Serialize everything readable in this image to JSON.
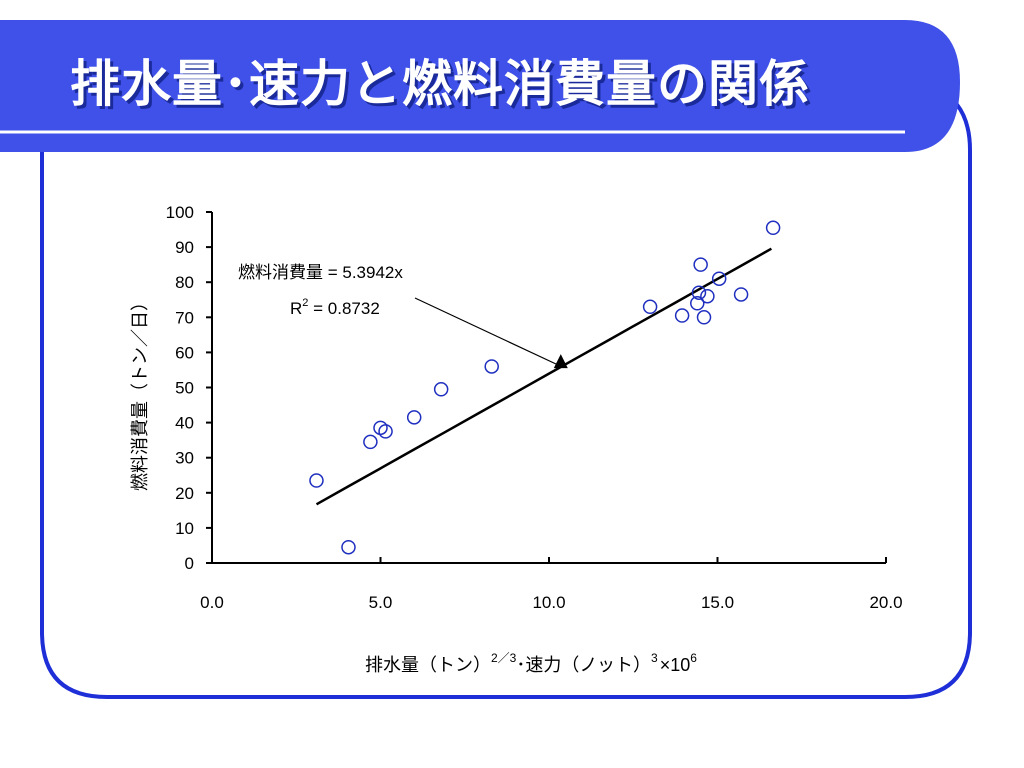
{
  "slide": {
    "title": "排水量･速力と燃料消費量の関係",
    "colors": {
      "accent": "#3f51e8",
      "frame": "#1f2fd8",
      "title_text": "#ffffff",
      "title_shadow": "#1a2a9a",
      "marker": "#1f2fbf",
      "line": "#000000"
    }
  },
  "chart_data": {
    "type": "scatter",
    "xlabel": "排水量（トン）",
    "xlabel_sup1": "2／3",
    "xlabel_mid": "･速力（ノット）",
    "xlabel_sup2": "3",
    "xlabel_tail": "×10",
    "xlabel_sup3": "6",
    "ylabel": "燃料消費量（トン／日）",
    "xlim": [
      0,
      20
    ],
    "ylim": [
      0,
      100
    ],
    "xticks": [
      "0.0",
      "5.0",
      "10.0",
      "15.0",
      "20.0"
    ],
    "yticks": [
      "0",
      "10",
      "20",
      "30",
      "40",
      "50",
      "60",
      "70",
      "80",
      "90",
      "100"
    ],
    "points": [
      {
        "x": 3.1,
        "y": 23.5
      },
      {
        "x": 4.05,
        "y": 4.5
      },
      {
        "x": 4.7,
        "y": 34.5
      },
      {
        "x": 5.0,
        "y": 38.5
      },
      {
        "x": 5.15,
        "y": 37.5
      },
      {
        "x": 6.0,
        "y": 41.5
      },
      {
        "x": 6.8,
        "y": 49.5
      },
      {
        "x": 8.3,
        "y": 56.0
      },
      {
        "x": 13.0,
        "y": 73.0
      },
      {
        "x": 13.95,
        "y": 70.5
      },
      {
        "x": 14.4,
        "y": 74.0
      },
      {
        "x": 14.45,
        "y": 77.0
      },
      {
        "x": 14.5,
        "y": 85.0
      },
      {
        "x": 14.6,
        "y": 70.0
      },
      {
        "x": 14.7,
        "y": 76.0
      },
      {
        "x": 15.05,
        "y": 81.0
      },
      {
        "x": 15.7,
        "y": 76.5
      },
      {
        "x": 16.65,
        "y": 95.5
      }
    ],
    "trendline": {
      "slope": 5.3942,
      "x": [
        3.1,
        16.6
      ],
      "equation": "燃料消費量 = 5.3942x",
      "r2_label": "R",
      "r2_sup": "2",
      "r2_value": " = 0.8732"
    },
    "annotation_marker": {
      "x": 10.35,
      "y": 57.5
    }
  }
}
